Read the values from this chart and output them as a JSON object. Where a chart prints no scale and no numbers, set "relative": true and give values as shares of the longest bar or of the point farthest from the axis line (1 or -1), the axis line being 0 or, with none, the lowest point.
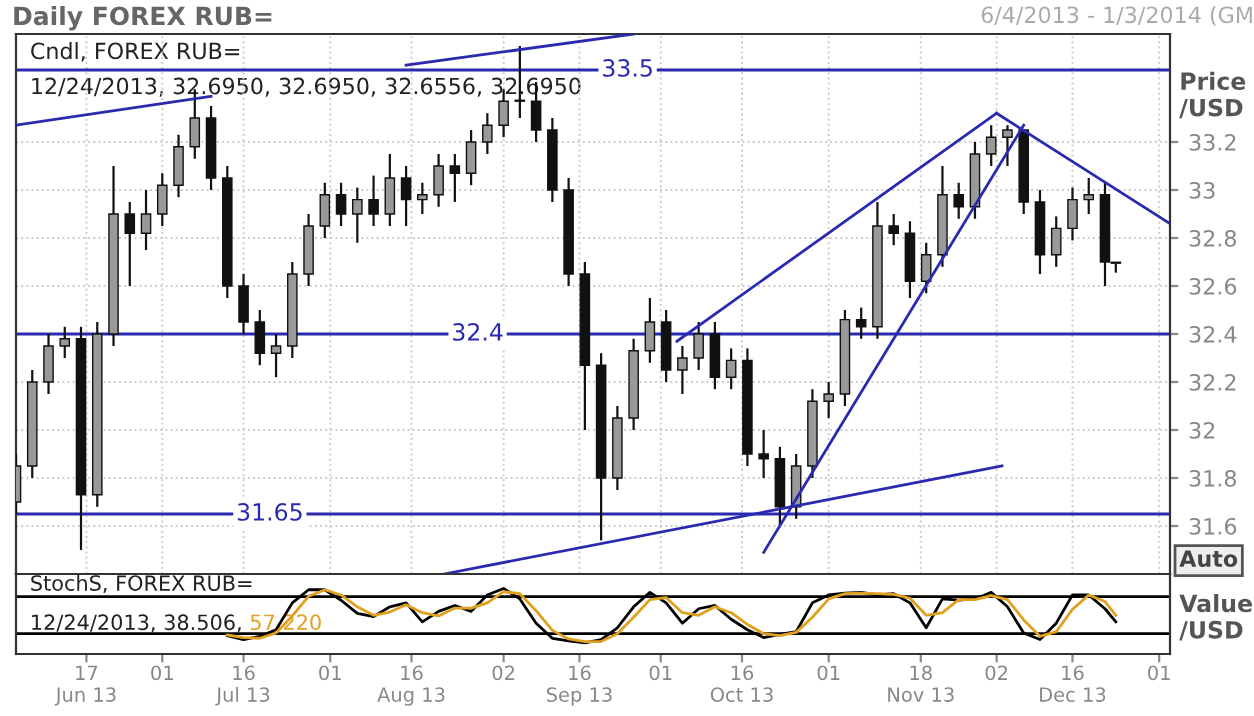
{
  "chart_data": [
    {
      "type": "candlestick",
      "title": "Daily FOREX RUB=",
      "subtitle": "6/4/2013 - 1/3/2014 (GM",
      "ylabel": "Price\n/USD",
      "annotations": [
        "Cndl, FOREX RUB=",
        "12/24/2013, 32.6950, 32.6950, 32.6556, 32.6950",
        "Auto"
      ],
      "x": [
        "2013-06-04",
        "2013-06-07",
        "2013-06-10",
        "2013-06-13",
        "2013-06-16",
        "2013-06-19",
        "2013-06-22",
        "2013-06-25",
        "2013-06-28",
        "2013-07-01",
        "2013-07-04",
        "2013-07-07",
        "2013-07-10",
        "2013-07-13",
        "2013-07-16",
        "2013-07-19",
        "2013-07-22",
        "2013-07-25",
        "2013-07-28",
        "2013-07-31",
        "2013-08-03",
        "2013-08-06",
        "2013-08-09",
        "2013-08-12",
        "2013-08-15",
        "2013-08-18",
        "2013-08-21",
        "2013-08-24",
        "2013-08-27",
        "2013-08-30",
        "2013-09-02",
        "2013-09-05",
        "2013-09-08",
        "2013-09-11",
        "2013-09-14",
        "2013-09-17",
        "2013-09-20",
        "2013-09-23",
        "2013-09-26",
        "2013-09-29",
        "2013-10-02",
        "2013-10-05",
        "2013-10-08",
        "2013-10-11",
        "2013-10-14",
        "2013-10-17",
        "2013-10-20",
        "2013-10-23",
        "2013-10-26",
        "2013-10-29",
        "2013-11-01",
        "2013-11-04",
        "2013-11-07",
        "2013-11-10",
        "2013-11-13",
        "2013-11-16",
        "2013-11-19",
        "2013-11-22",
        "2013-11-25",
        "2013-11-28",
        "2013-12-01",
        "2013-12-04",
        "2013-12-07",
        "2013-12-10",
        "2013-12-13",
        "2013-12-16",
        "2013-12-19",
        "2013-12-22",
        "2013-12-24"
      ],
      "ohlc": [
        [
          31.7,
          31.9,
          31.65,
          31.85
        ],
        [
          31.85,
          32.25,
          31.8,
          32.2
        ],
        [
          32.2,
          32.4,
          32.15,
          32.35
        ],
        [
          32.35,
          32.43,
          32.3,
          32.38
        ],
        [
          32.38,
          32.43,
          31.5,
          31.73
        ],
        [
          31.73,
          32.45,
          31.68,
          32.4
        ],
        [
          32.4,
          33.1,
          32.35,
          32.9
        ],
        [
          32.9,
          32.95,
          32.6,
          32.82
        ],
        [
          32.82,
          33.0,
          32.75,
          32.9
        ],
        [
          32.9,
          33.07,
          32.85,
          33.02
        ],
        [
          33.02,
          33.23,
          32.97,
          33.18
        ],
        [
          33.18,
          33.42,
          33.13,
          33.3
        ],
        [
          33.3,
          33.35,
          33.0,
          33.05
        ],
        [
          33.05,
          33.1,
          32.55,
          32.6
        ],
        [
          32.6,
          32.65,
          32.4,
          32.45
        ],
        [
          32.45,
          32.5,
          32.27,
          32.32
        ],
        [
          32.32,
          32.4,
          32.22,
          32.35
        ],
        [
          32.35,
          32.7,
          32.3,
          32.65
        ],
        [
          32.65,
          32.9,
          32.6,
          32.85
        ],
        [
          32.85,
          33.03,
          32.8,
          32.98
        ],
        [
          32.98,
          33.03,
          32.85,
          32.9
        ],
        [
          32.9,
          33.01,
          32.78,
          32.96
        ],
        [
          32.96,
          33.06,
          32.85,
          32.9
        ],
        [
          32.9,
          33.15,
          32.85,
          33.05
        ],
        [
          33.05,
          33.1,
          32.85,
          32.96
        ],
        [
          32.96,
          33.03,
          32.9,
          32.98
        ],
        [
          32.98,
          33.15,
          32.93,
          33.1
        ],
        [
          33.1,
          33.15,
          32.95,
          33.07
        ],
        [
          33.07,
          33.25,
          33.02,
          33.2
        ],
        [
          33.2,
          33.32,
          33.15,
          33.27
        ],
        [
          33.27,
          33.42,
          33.22,
          33.37
        ],
        [
          33.37,
          33.6,
          33.3,
          33.37
        ],
        [
          33.37,
          33.45,
          33.2,
          33.25
        ],
        [
          33.25,
          33.3,
          32.95,
          33.0
        ],
        [
          33.0,
          33.05,
          32.6,
          32.65
        ],
        [
          32.65,
          32.7,
          32.0,
          32.27
        ],
        [
          32.27,
          32.32,
          31.54,
          31.8
        ],
        [
          31.8,
          32.1,
          31.75,
          32.05
        ],
        [
          32.05,
          32.38,
          32.0,
          32.33
        ],
        [
          32.33,
          32.55,
          32.28,
          32.45
        ],
        [
          32.45,
          32.5,
          32.2,
          32.25
        ],
        [
          32.25,
          32.35,
          32.15,
          32.3
        ],
        [
          32.3,
          32.45,
          32.25,
          32.4
        ],
        [
          32.4,
          32.45,
          32.17,
          32.22
        ],
        [
          32.22,
          32.34,
          32.17,
          32.29
        ],
        [
          32.29,
          32.34,
          31.85,
          31.9
        ],
        [
          31.9,
          32.0,
          31.8,
          31.88
        ],
        [
          31.88,
          31.93,
          31.6,
          31.68
        ],
        [
          31.68,
          31.9,
          31.63,
          31.85
        ],
        [
          31.85,
          32.17,
          31.8,
          32.12
        ],
        [
          32.12,
          32.2,
          32.05,
          32.15
        ],
        [
          32.15,
          32.5,
          32.1,
          32.46
        ],
        [
          32.46,
          32.51,
          32.38,
          32.43
        ],
        [
          32.43,
          32.95,
          32.38,
          32.85
        ],
        [
          32.85,
          32.9,
          32.77,
          32.82
        ],
        [
          32.82,
          32.87,
          32.55,
          32.62
        ],
        [
          32.62,
          32.78,
          32.57,
          32.73
        ],
        [
          32.73,
          33.1,
          32.68,
          32.98
        ],
        [
          32.98,
          33.03,
          32.88,
          32.93
        ],
        [
          32.93,
          33.2,
          32.88,
          33.15
        ],
        [
          33.15,
          33.27,
          33.1,
          33.22
        ],
        [
          33.22,
          33.27,
          33.1,
          33.25
        ],
        [
          33.25,
          33.25,
          32.9,
          32.95
        ],
        [
          32.95,
          33.0,
          32.65,
          32.73
        ],
        [
          32.73,
          32.89,
          32.68,
          32.84
        ],
        [
          32.84,
          33.01,
          32.79,
          32.96
        ],
        [
          32.96,
          33.05,
          32.9,
          32.98
        ],
        [
          32.98,
          33.03,
          32.6,
          32.7
        ],
        [
          32.695,
          32.695,
          32.6556,
          32.695
        ]
      ],
      "series": [
        {
          "type": "line",
          "color": "#2a2ab0",
          "x": [
            "2013-06-04",
            "2013-07-10"
          ],
          "values": [
            33.27,
            33.39
          ]
        },
        {
          "type": "line",
          "color": "#2a2ab0",
          "x": [
            "2013-08-15",
            "2013-09-26"
          ],
          "values": [
            33.52,
            33.65
          ]
        },
        {
          "type": "line",
          "color": "#2a2ab0",
          "x": [
            "2013-08-22",
            "2013-12-03"
          ],
          "values": [
            31.4,
            31.85
          ]
        },
        {
          "type": "line",
          "color": "#2a2ab0",
          "x": [
            "2013-10-04",
            "2013-12-02"
          ],
          "values": [
            32.37,
            33.32
          ]
        },
        {
          "type": "line",
          "color": "#2a2ab0",
          "x": [
            "2013-10-20",
            "2013-12-07"
          ],
          "values": [
            31.49,
            33.27
          ]
        },
        {
          "type": "line",
          "color": "#2a2ab0",
          "x": [
            "2013-12-02",
            "2014-01-03"
          ],
          "values": [
            33.32,
            32.86
          ]
        }
      ],
      "ref_lines": [
        {
          "axis": "y",
          "value": 33.5,
          "label": "33.5",
          "color": "#2a2ab0"
        },
        {
          "axis": "y",
          "value": 32.4,
          "label": "32.4",
          "color": "#2a2ab0"
        },
        {
          "axis": "y",
          "value": 31.65,
          "label": "31.65",
          "color": "#2a2ab0"
        }
      ],
      "xlim": [
        "2013-06-04",
        "2014-01-03"
      ],
      "ylim": [
        31.4,
        33.65
      ],
      "yticks": [
        31.6,
        31.8,
        32,
        32.2,
        32.4,
        32.6,
        32.8,
        33,
        33.2
      ],
      "xticks": [
        {
          "value": "2013-06-17",
          "label": null
        },
        {
          "value": "2013-07-01",
          "label": null
        },
        {
          "value": "2013-07-16",
          "label": null
        },
        {
          "value": "2013-08-01",
          "label": null
        },
        {
          "value": "2013-08-16",
          "label": null
        },
        {
          "value": "2013-09-02",
          "label": null
        },
        {
          "value": "2013-09-16",
          "label": null
        },
        {
          "value": "2013-10-01",
          "label": null
        },
        {
          "value": "2013-10-16",
          "label": null
        },
        {
          "value": "2013-11-01",
          "label": null
        },
        {
          "value": "2013-11-18",
          "label": null
        },
        {
          "value": "2013-12-02",
          "label": null
        },
        {
          "value": "2013-12-16",
          "label": null
        },
        {
          "value": "2014-01-01",
          "label": null
        }
      ],
      "grid": true,
      "tick_labels": "y"
    },
    {
      "type": "line",
      "relative": true,
      "ylabel": "Value\n/USD",
      "annotations": [
        "StochS, FOREX RUB=",
        "12/24/2013, 38.506,",
        "57.220"
      ],
      "x": [
        "2013-07-13",
        "2013-07-16",
        "2013-07-19",
        "2013-07-22",
        "2013-07-25",
        "2013-07-28",
        "2013-07-31",
        "2013-08-03",
        "2013-08-06",
        "2013-08-09",
        "2013-08-12",
        "2013-08-15",
        "2013-08-18",
        "2013-08-21",
        "2013-08-24",
        "2013-08-27",
        "2013-08-30",
        "2013-09-02",
        "2013-09-05",
        "2013-09-08",
        "2013-09-11",
        "2013-09-14",
        "2013-09-17",
        "2013-09-20",
        "2013-09-23",
        "2013-09-26",
        "2013-09-29",
        "2013-10-02",
        "2013-10-05",
        "2013-10-08",
        "2013-10-11",
        "2013-10-14",
        "2013-10-17",
        "2013-10-20",
        "2013-10-23",
        "2013-10-26",
        "2013-10-29",
        "2013-11-01",
        "2013-11-04",
        "2013-11-07",
        "2013-11-10",
        "2013-11-13",
        "2013-11-16",
        "2013-11-19",
        "2013-11-22",
        "2013-11-25",
        "2013-11-28",
        "2013-12-01",
        "2013-12-04",
        "2013-12-07",
        "2013-12-10",
        "2013-12-13",
        "2013-12-16",
        "2013-12-19",
        "2013-12-22",
        "2013-12-24"
      ],
      "series": [
        {
          "type": "line",
          "color": "#000000",
          "values": [
            0.28,
            0.22,
            0.27,
            0.37,
            0.78,
            0.98,
            0.98,
            0.82,
            0.62,
            0.57,
            0.72,
            0.78,
            0.49,
            0.65,
            0.74,
            0.65,
            0.9,
            1.0,
            0.84,
            0.47,
            0.24,
            0.2,
            0.17,
            0.22,
            0.4,
            0.72,
            0.94,
            0.78,
            0.47,
            0.69,
            0.74,
            0.53,
            0.37,
            0.25,
            0.3,
            0.34,
            0.78,
            0.9,
            0.93,
            0.94,
            0.9,
            0.92,
            0.78,
            0.4,
            0.84,
            0.82,
            0.84,
            0.94,
            0.72,
            0.32,
            0.22,
            0.47,
            0.9,
            0.9,
            0.69,
            0.49
          ]
        },
        {
          "type": "line",
          "color": "#e0a020",
          "values": [
            0.29,
            0.25,
            0.24,
            0.32,
            0.58,
            0.88,
            0.98,
            0.9,
            0.72,
            0.59,
            0.64,
            0.75,
            0.63,
            0.58,
            0.7,
            0.7,
            0.78,
            0.95,
            0.92,
            0.66,
            0.36,
            0.23,
            0.19,
            0.19,
            0.31,
            0.56,
            0.83,
            0.86,
            0.63,
            0.59,
            0.72,
            0.63,
            0.45,
            0.31,
            0.28,
            0.33,
            0.56,
            0.84,
            0.92,
            0.93,
            0.92,
            0.91,
            0.85,
            0.59,
            0.63,
            0.83,
            0.83,
            0.89,
            0.83,
            0.52,
            0.27,
            0.34,
            0.68,
            0.9,
            0.8,
            0.59
          ]
        }
      ],
      "ref_lines": [
        {
          "axis": "y",
          "value": 0.875,
          "color": "#000000"
        },
        {
          "axis": "y",
          "value": 0.31,
          "color": "#000000"
        }
      ],
      "xlim": [
        "2013-06-04",
        "2014-01-03"
      ],
      "xticks": [
        {
          "value": "2013-06-17",
          "label": "17\nJun 13"
        },
        {
          "value": "2013-07-01",
          "label": "01"
        },
        {
          "value": "2013-07-16",
          "label": "16\nJul 13"
        },
        {
          "value": "2013-08-01",
          "label": "01"
        },
        {
          "value": "2013-08-16",
          "label": "16\nAug 13"
        },
        {
          "value": "2013-09-02",
          "label": "02"
        },
        {
          "value": "2013-09-16",
          "label": "16\nSep 13"
        },
        {
          "value": "2013-10-01",
          "label": "01"
        },
        {
          "value": "2013-10-16",
          "label": "16\nOct 13"
        },
        {
          "value": "2013-11-01",
          "label": "01"
        },
        {
          "value": "2013-11-18",
          "label": "18\nNov 13"
        },
        {
          "value": "2013-12-02",
          "label": "02"
        },
        {
          "value": "2013-12-16",
          "label": "16\nDec 13"
        },
        {
          "value": "2014-01-01",
          "label": "01"
        }
      ],
      "tick_labels": "x"
    }
  ]
}
